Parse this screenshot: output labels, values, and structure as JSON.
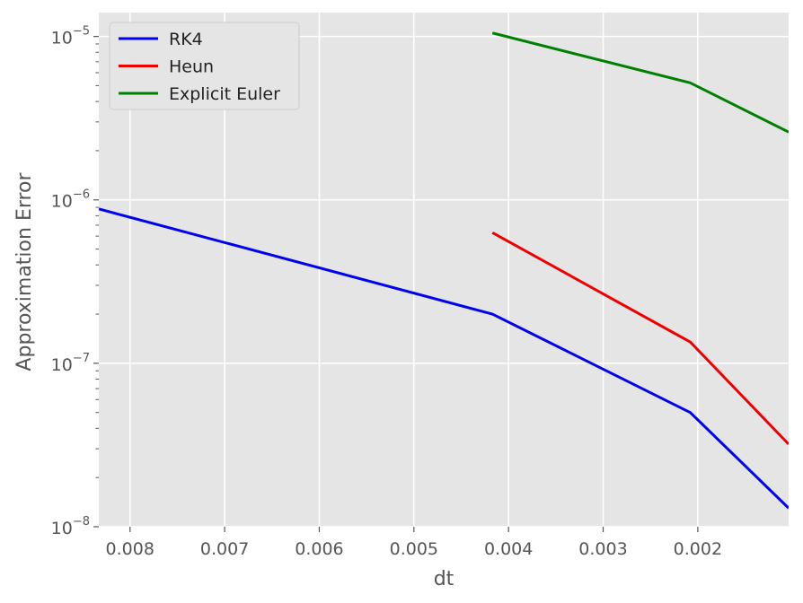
{
  "chart_data": {
    "type": "line",
    "title": "",
    "xlabel": "dt",
    "ylabel": "Approximation Error",
    "x_scale": "linear",
    "x_inverted": true,
    "y_scale": "log",
    "xlim": [
      0.00833,
      0.00104
    ],
    "ylim": [
      1e-08,
      1.4e-05
    ],
    "grid": true,
    "legend_position": "top-left",
    "x_ticks": [
      {
        "value": 0.008,
        "label": "0.008"
      },
      {
        "value": 0.007,
        "label": "0.007"
      },
      {
        "value": 0.006,
        "label": "0.006"
      },
      {
        "value": 0.005,
        "label": "0.005"
      },
      {
        "value": 0.004,
        "label": "0.004"
      },
      {
        "value": 0.003,
        "label": "0.003"
      },
      {
        "value": 0.002,
        "label": "0.002"
      }
    ],
    "y_ticks": [
      {
        "value": 1e-05,
        "base": "10",
        "exp": "−5"
      },
      {
        "value": 1e-06,
        "base": "10",
        "exp": "−6"
      },
      {
        "value": 1e-07,
        "base": "10",
        "exp": "−7"
      },
      {
        "value": 1e-08,
        "base": "10",
        "exp": "−8"
      }
    ],
    "series": [
      {
        "name": "RK4",
        "color": "#0000ee",
        "x": [
          0.00833,
          0.00417,
          0.00208,
          0.00104
        ],
        "y": [
          8.8e-07,
          2e-07,
          5e-08,
          1.3e-08
        ]
      },
      {
        "name": "Heun",
        "color": "#ee0000",
        "x": [
          0.00417,
          0.00208,
          0.00104
        ],
        "y": [
          6.3e-07,
          1.35e-07,
          3.2e-08
        ]
      },
      {
        "name": "Explicit Euler",
        "color": "#008000",
        "x": [
          0.00417,
          0.00208,
          0.00104
        ],
        "y": [
          1.05e-05,
          5.2e-06,
          2.6e-06
        ]
      }
    ]
  }
}
